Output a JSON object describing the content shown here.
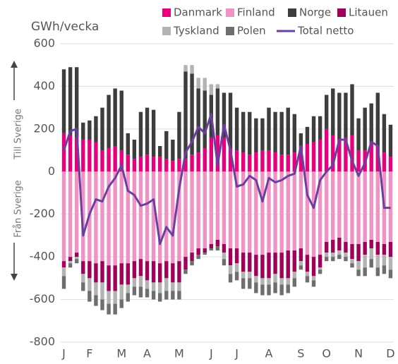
{
  "chart_data": {
    "type": "bar",
    "y_label": "GWh/vecka",
    "y_label_top": "Till Sverige",
    "y_label_bottom": "Från Sverige",
    "categories": [
      "J",
      null,
      null,
      null,
      "F",
      null,
      null,
      null,
      null,
      "M",
      null,
      null,
      null,
      "A",
      null,
      null,
      null,
      null,
      "M",
      null,
      null,
      null,
      null,
      "J",
      null,
      null,
      null,
      "J",
      null,
      null,
      null,
      null,
      "A",
      null,
      null,
      null,
      null,
      "S",
      null,
      null,
      null,
      "O",
      null,
      null,
      null,
      null,
      "N",
      null,
      null,
      null,
      null,
      "D"
    ],
    "series": [
      {
        "name": "Danmark",
        "color": "#e6007e",
        "values": [
          180,
          170,
          160,
          150,
          150,
          140,
          100,
          110,
          120,
          100,
          80,
          60,
          70,
          80,
          70,
          70,
          60,
          50,
          60,
          60,
          80,
          90,
          110,
          160,
          170,
          160,
          110,
          100,
          90,
          80,
          90,
          100,
          100,
          90,
          80,
          80,
          90,
          120,
          130,
          140,
          150,
          200,
          170,
          150,
          160,
          170,
          100,
          100,
          140,
          120,
          90,
          70
        ]
      },
      {
        "name": "Finland",
        "color": "#f093c4",
        "values": [
          -420,
          -400,
          -380,
          -420,
          -420,
          -430,
          -420,
          -440,
          -440,
          -430,
          -430,
          -420,
          -410,
          -420,
          -420,
          -430,
          -420,
          -430,
          -420,
          -400,
          -380,
          -360,
          -360,
          -340,
          -320,
          -340,
          -360,
          -360,
          -380,
          -380,
          -390,
          -390,
          -380,
          -380,
          -380,
          -370,
          -370,
          -360,
          -390,
          -400,
          -390,
          -330,
          -320,
          -310,
          -330,
          -340,
          -340,
          -330,
          -320,
          -330,
          -340,
          -330
        ]
      },
      {
        "name": "Norge",
        "color": "#3d3d3d",
        "values": [
          300,
          320,
          330,
          80,
          90,
          120,
          200,
          250,
          270,
          280,
          100,
          90,
          210,
          220,
          220,
          50,
          130,
          100,
          220,
          410,
          380,
          300,
          270,
          200,
          220,
          210,
          260,
          200,
          190,
          200,
          160,
          150,
          200,
          190,
          200,
          220,
          180,
          60,
          80,
          120,
          110,
          160,
          220,
          220,
          210,
          240,
          150,
          200,
          180,
          250,
          180,
          150
        ]
      },
      {
        "name": "Litauen",
        "color": "#a0005a",
        "values": [
          -30,
          -20,
          -20,
          -60,
          -80,
          -90,
          -100,
          -120,
          -120,
          -100,
          -100,
          -80,
          -80,
          -90,
          -100,
          -90,
          -80,
          -90,
          -100,
          -60,
          -40,
          -30,
          -20,
          -20,
          -30,
          -40,
          -80,
          -70,
          -90,
          -90,
          -100,
          -110,
          -120,
          -100,
          -120,
          -130,
          -100,
          -60,
          -80,
          -90,
          -60,
          -50,
          -60,
          -60,
          -50,
          -70,
          -80,
          -60,
          -40,
          -60,
          -50,
          -70
        ]
      },
      {
        "name": "Tyskland",
        "color": "#b3b3b3",
        "values": [
          -40,
          -10,
          -10,
          -40,
          -60,
          -60,
          -80,
          -60,
          -60,
          -70,
          -40,
          -40,
          -50,
          -40,
          -40,
          -50,
          -60,
          -40,
          -40,
          30,
          40,
          50,
          60,
          50,
          20,
          -30,
          -40,
          -40,
          -30,
          -30,
          -30,
          -30,
          -30,
          -40,
          -30,
          -30,
          -30,
          -20,
          -20,
          -20,
          -10,
          -20,
          -20,
          -20,
          -20,
          -20,
          -40,
          -60,
          -50,
          -60,
          -50,
          -60
        ]
      },
      {
        "name": "Polen",
        "color": "#6e6e6e",
        "values": [
          -60,
          -20,
          -20,
          -40,
          -50,
          -50,
          -50,
          -50,
          -50,
          -40,
          -40,
          -40,
          -50,
          -40,
          -40,
          -40,
          -40,
          -40,
          -40,
          -20,
          -20,
          -20,
          -10,
          -10,
          -20,
          -30,
          -40,
          -40,
          -50,
          -50,
          -50,
          -50,
          -50,
          -50,
          -50,
          -40,
          -40,
          -20,
          -30,
          -30,
          -20,
          -20,
          -20,
          -20,
          -20,
          -20,
          -30,
          -40,
          -40,
          -40,
          -40,
          -40
        ]
      }
    ],
    "line": {
      "name": "Total netto",
      "color": "#6b3fa0",
      "values": [
        100,
        190,
        200,
        -300,
        -200,
        -130,
        -140,
        -70,
        -30,
        30,
        -90,
        -110,
        -160,
        -150,
        -130,
        -340,
        -260,
        -300,
        -80,
        90,
        140,
        210,
        180,
        270,
        30,
        220,
        100,
        -70,
        -60,
        -20,
        -40,
        -140,
        -30,
        -50,
        -40,
        -20,
        -10,
        120,
        -110,
        -170,
        -40,
        0,
        30,
        150,
        150,
        50,
        -20,
        40,
        140,
        120,
        -170,
        -170
      ]
    },
    "ylim": [
      -800,
      600
    ],
    "yticks": [
      -800,
      -600,
      -400,
      -200,
      0,
      200,
      400,
      600
    ],
    "grid": true
  }
}
